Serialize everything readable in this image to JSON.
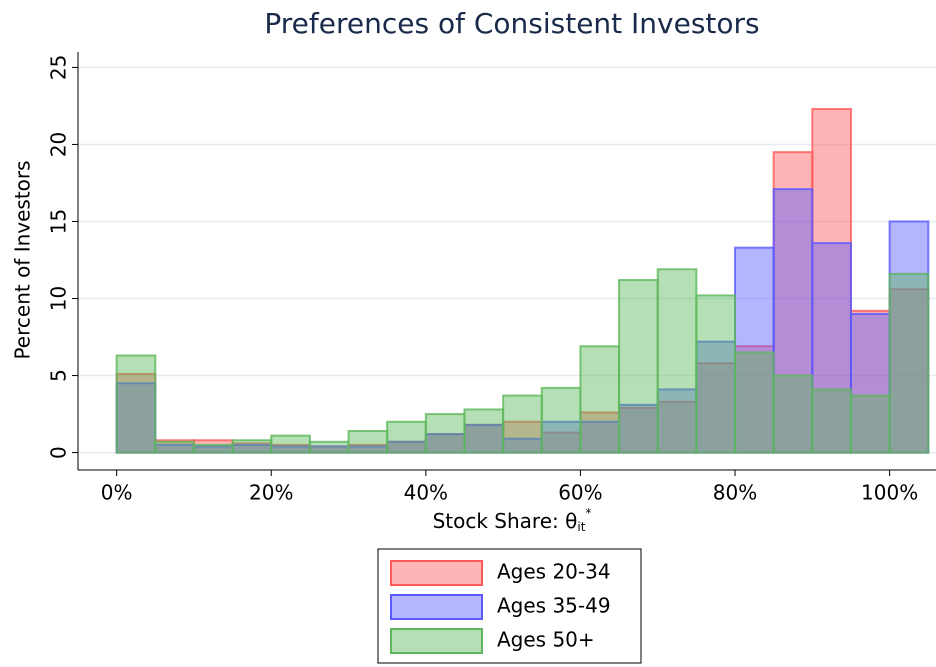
{
  "chart_data": {
    "type": "histogram",
    "title": "Preferences of Consistent Investors",
    "ylabel": "Percent of Investors",
    "xlabel": {
      "text": "Stock Share: θ",
      "subscript": "it",
      "superscript": "*"
    },
    "bins": [
      0,
      5,
      10,
      15,
      20,
      25,
      30,
      35,
      40,
      45,
      50,
      55,
      60,
      65,
      70,
      75,
      80,
      85,
      90,
      95,
      100,
      105
    ],
    "series": [
      {
        "name": "Ages 20-34",
        "color": "#ff5a5a",
        "values": [
          5.1,
          0.8,
          0.8,
          0.6,
          0.5,
          0.4,
          0.5,
          0.7,
          1.2,
          1.8,
          2.0,
          1.3,
          2.6,
          2.9,
          3.3,
          5.8,
          6.9,
          19.5,
          22.3,
          9.2,
          10.6
        ]
      },
      {
        "name": "Ages 35-49",
        "color": "#5a5aff",
        "values": [
          4.5,
          0.5,
          0.4,
          0.5,
          0.4,
          0.4,
          0.4,
          0.7,
          1.2,
          1.8,
          0.9,
          2.0,
          2.0,
          3.1,
          4.1,
          7.2,
          13.3,
          17.1,
          13.6,
          9.0,
          15.0
        ]
      },
      {
        "name": "Ages 50+",
        "color": "#5cb85c",
        "values": [
          6.3,
          0.7,
          0.5,
          0.8,
          1.1,
          0.7,
          1.4,
          2.0,
          2.5,
          2.8,
          3.7,
          4.2,
          6.9,
          11.2,
          11.9,
          10.2,
          6.5,
          5.0,
          4.1,
          3.7,
          11.6
        ]
      }
    ],
    "xlim": [
      -5,
      106
    ],
    "ylim": [
      -1,
      26
    ],
    "xticks": [
      {
        "value": 0,
        "label": "0%"
      },
      {
        "value": 20,
        "label": "20%"
      },
      {
        "value": 40,
        "label": "40%"
      },
      {
        "value": 60,
        "label": "60%"
      },
      {
        "value": 80,
        "label": "80%"
      },
      {
        "value": 100,
        "label": "100%"
      }
    ],
    "yticks": [
      0,
      5,
      10,
      15,
      20,
      25
    ],
    "grid": true,
    "legend": "bottom"
  }
}
